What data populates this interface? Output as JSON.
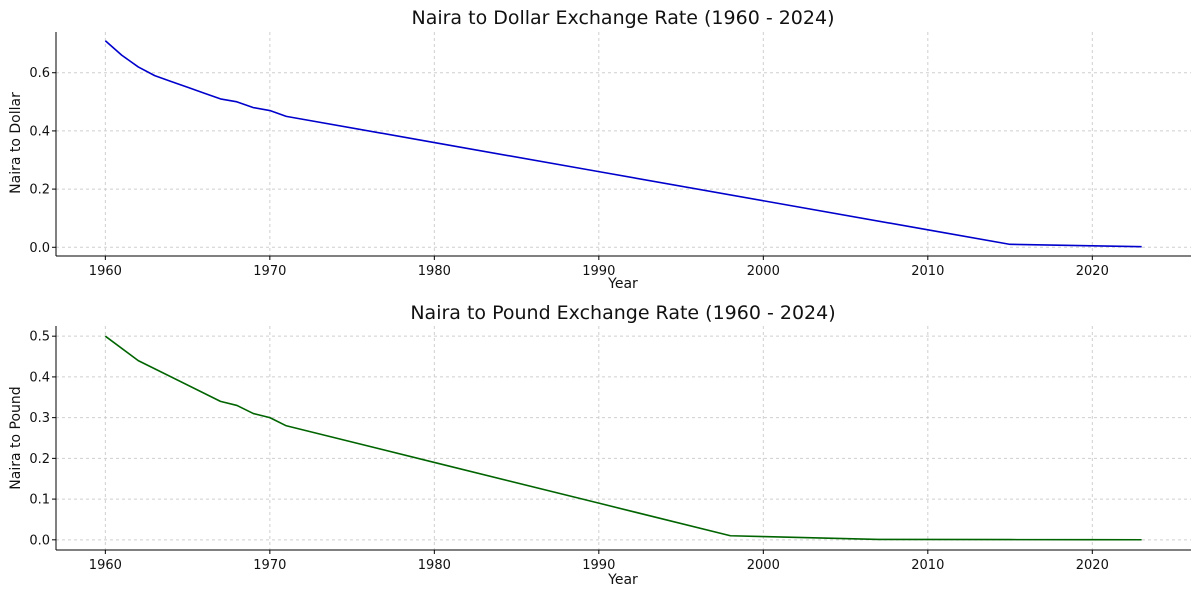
{
  "chart_data": [
    {
      "type": "line",
      "title": "Naira to Dollar Exchange Rate (1960 - 2024)",
      "xlabel": "Year",
      "ylabel": "Naira to Dollar",
      "xlim": [
        1957,
        2026
      ],
      "ylim": [
        -0.03,
        0.74
      ],
      "xticks": [
        1960,
        1970,
        1980,
        1990,
        2000,
        2010,
        2020
      ],
      "yticks": [
        0.0,
        0.2,
        0.4,
        0.6
      ],
      "ytick_labels": [
        "0.0",
        "0.2",
        "0.4",
        "0.6"
      ],
      "grid": true,
      "series": [
        {
          "color": "#0000cc",
          "x": [
            1960,
            1961,
            1962,
            1963,
            1964,
            1965,
            1966,
            1967,
            1968,
            1969,
            1970,
            1971,
            1980,
            1990,
            2000,
            2010,
            2015,
            2020,
            2023
          ],
          "y": [
            0.71,
            0.66,
            0.62,
            0.59,
            0.57,
            0.55,
            0.53,
            0.51,
            0.5,
            0.48,
            0.47,
            0.45,
            0.36,
            0.26,
            0.16,
            0.06,
            0.01,
            0.005,
            0.002
          ]
        }
      ]
    },
    {
      "type": "line",
      "title": "Naira to Pound Exchange Rate (1960 - 2024)",
      "xlabel": "Year",
      "ylabel": "Naira to Pound",
      "xlim": [
        1957,
        2026
      ],
      "ylim": [
        -0.025,
        0.525
      ],
      "xticks": [
        1960,
        1970,
        1980,
        1990,
        2000,
        2010,
        2020
      ],
      "yticks": [
        0.0,
        0.1,
        0.2,
        0.3,
        0.4,
        0.5
      ],
      "ytick_labels": [
        "0.0",
        "0.1",
        "0.2",
        "0.3",
        "0.4",
        "0.5"
      ],
      "grid": true,
      "series": [
        {
          "color": "#006400",
          "x": [
            1960,
            1962,
            1967,
            1968,
            1969,
            1970,
            1971,
            1980,
            1990,
            1998,
            2000,
            2007,
            2015,
            2020,
            2023
          ],
          "y": [
            0.5,
            0.44,
            0.34,
            0.33,
            0.31,
            0.3,
            0.28,
            0.19,
            0.09,
            0.01,
            0.008,
            0.001,
            0.0005,
            0.0003,
            0.0002
          ]
        }
      ]
    }
  ]
}
